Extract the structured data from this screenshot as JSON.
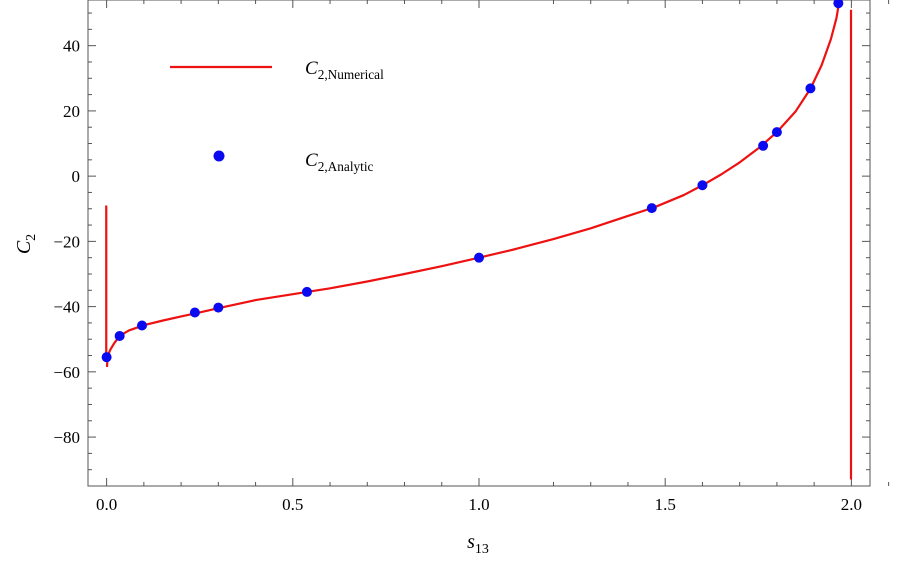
{
  "chart_data": {
    "type": "line",
    "title": "",
    "xlabel": {
      "main": "s",
      "sub": "13"
    },
    "ylabel": {
      "main": "C",
      "sub": "2"
    },
    "xlim": [
      -0.05,
      2.05
    ],
    "ylim": [
      -95,
      54
    ],
    "x_ticks": [
      0.0,
      0.5,
      1.0,
      1.5,
      2.0
    ],
    "x_tick_labels": [
      "0.0",
      "0.5",
      "1.0",
      "1.5",
      "2.0"
    ],
    "y_ticks": [
      -80,
      -60,
      -40,
      -20,
      0,
      20,
      40
    ],
    "y_tick_labels": [
      "−80",
      "−60",
      "−40",
      "−20",
      "0",
      "20",
      "40"
    ],
    "grid": false,
    "legend_position": "top-left",
    "series": [
      {
        "name_main": "C",
        "name_sub": "2,Numerical",
        "style": "line",
        "color": "#ee1111",
        "segments": [
          [
            [
              -0.001,
              -9
            ],
            [
              -0.001,
              -57
            ]
          ],
          [
            [
              0.001,
              -58.5
            ],
            [
              0.002,
              -56.5
            ],
            [
              0.005,
              -54.5
            ],
            [
              0.01,
              -53.2
            ],
            [
              0.02,
              -51.3
            ],
            [
              0.035,
              -49.0
            ],
            [
              0.06,
              -47.3
            ],
            [
              0.1,
              -45.7
            ],
            [
              0.15,
              -44.3
            ],
            [
              0.2,
              -43.0
            ],
            [
              0.25,
              -41.8
            ],
            [
              0.3,
              -40.5
            ],
            [
              0.4,
              -38.0
            ],
            [
              0.5,
              -36.2
            ],
            [
              0.6,
              -34.4
            ],
            [
              0.7,
              -32.3
            ],
            [
              0.8,
              -30.0
            ],
            [
              0.9,
              -27.6
            ],
            [
              1.0,
              -25.0
            ],
            [
              1.1,
              -22.3
            ],
            [
              1.2,
              -19.3
            ],
            [
              1.3,
              -16.0
            ],
            [
              1.4,
              -12.2
            ],
            [
              1.47,
              -9.6
            ],
            [
              1.55,
              -5.8
            ],
            [
              1.6,
              -2.8
            ],
            [
              1.65,
              0.5
            ],
            [
              1.7,
              4.2
            ],
            [
              1.75,
              8.5
            ],
            [
              1.8,
              13.5
            ],
            [
              1.85,
              19.8
            ],
            [
              1.89,
              26.8
            ],
            [
              1.92,
              34.0
            ],
            [
              1.945,
              42.0
            ],
            [
              1.96,
              48.5
            ],
            [
              1.968,
              54.0
            ]
          ],
          [
            [
              1.999,
              51
            ],
            [
              1.999,
              -93
            ]
          ]
        ]
      },
      {
        "name_main": "C",
        "name_sub": "2,Analytic",
        "style": "markers",
        "color": "#0a0af0",
        "x": [
          0.0,
          0.035,
          0.095,
          0.237,
          0.3,
          0.538,
          1.0,
          1.464,
          1.6,
          1.763,
          1.8,
          1.89,
          1.965
        ],
        "y": [
          -55.5,
          -49.0,
          -45.8,
          -41.8,
          -40.3,
          -35.5,
          -25.0,
          -9.8,
          -2.8,
          9.3,
          13.5,
          26.9,
          53.0
        ]
      }
    ]
  }
}
